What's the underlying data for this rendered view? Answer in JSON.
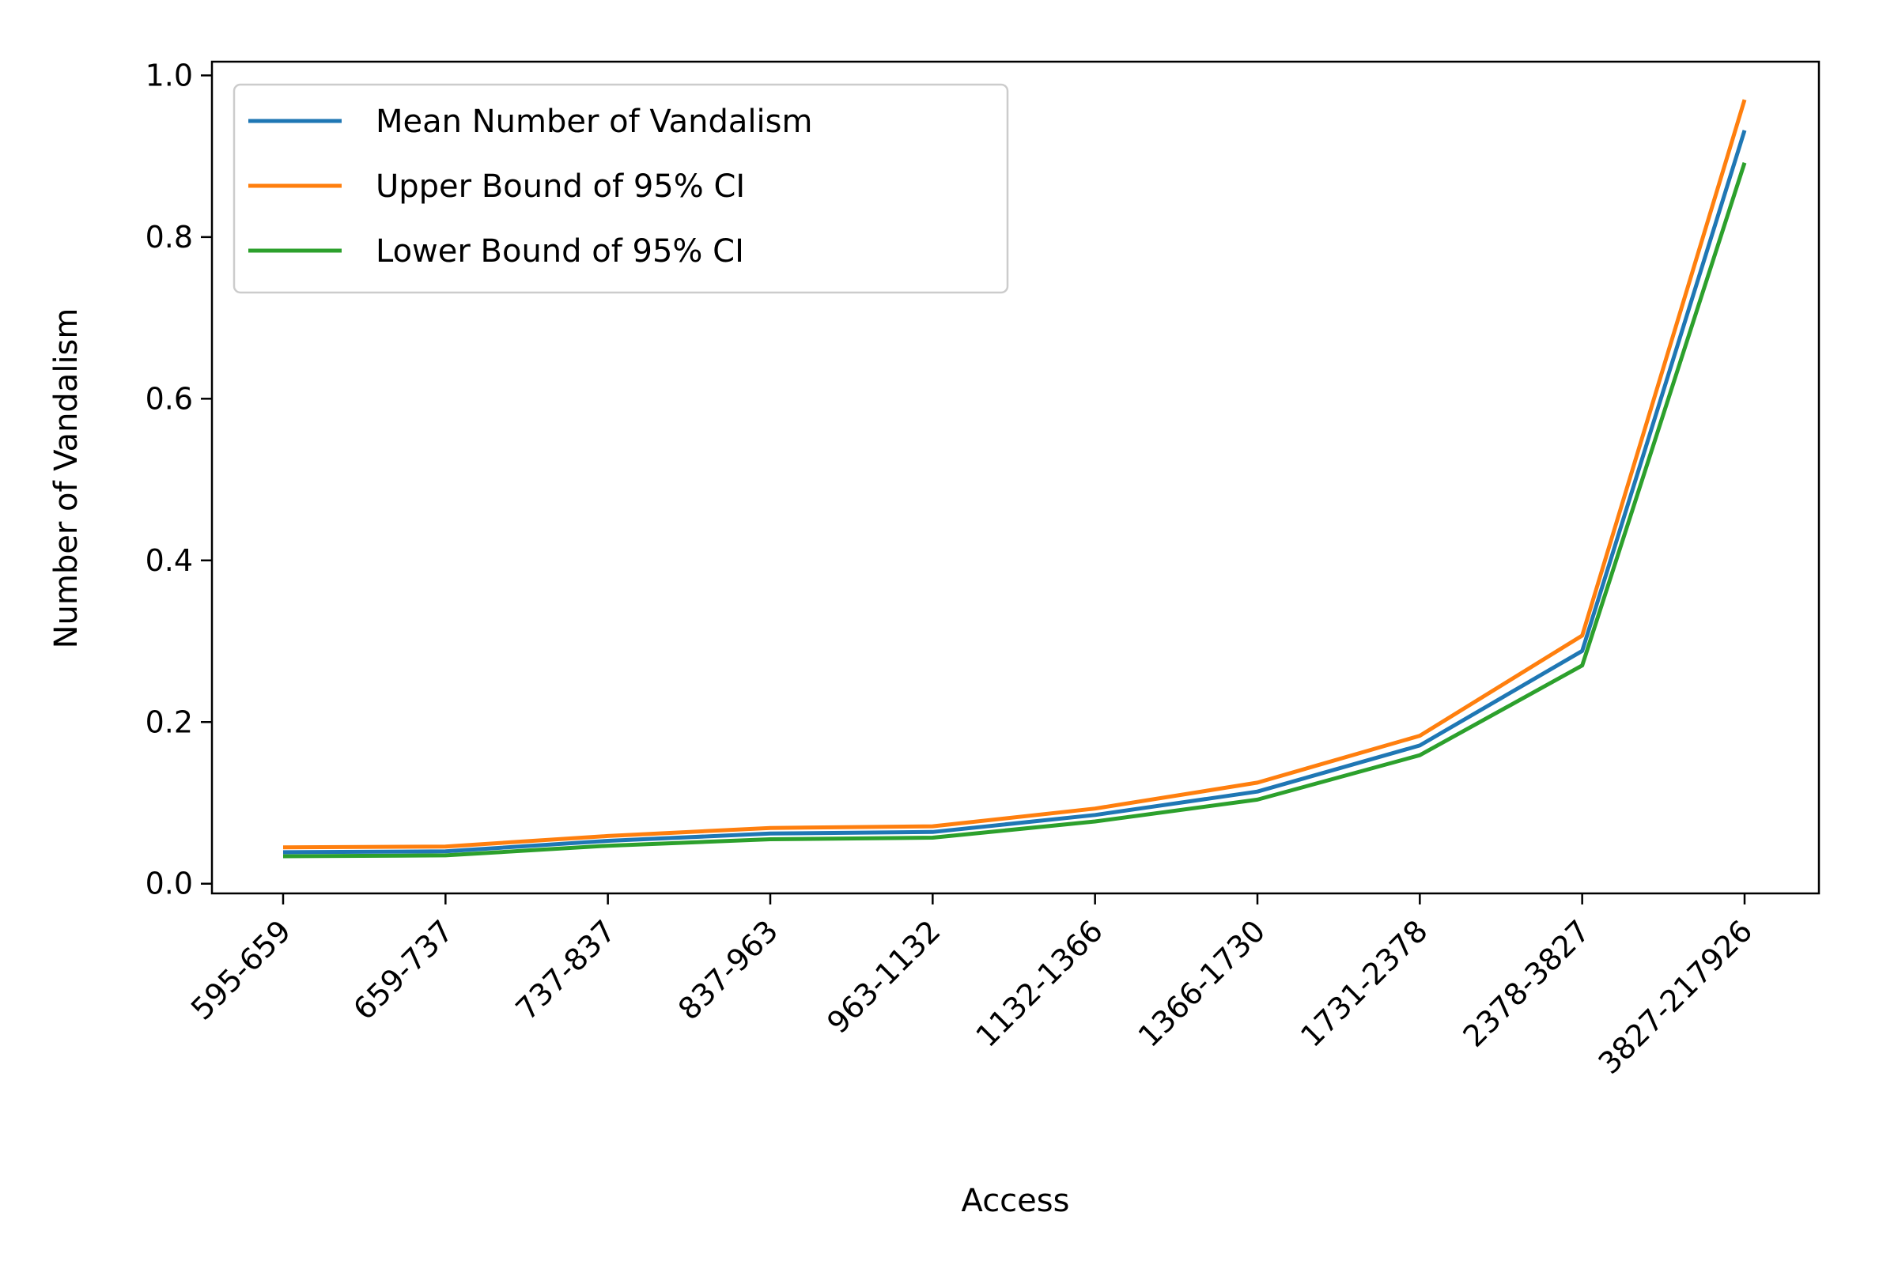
{
  "chart_data": {
    "type": "line",
    "title": "",
    "xlabel": "Access",
    "ylabel": "Number of Vandalism",
    "categories": [
      "595-659",
      "659-737",
      "737-837",
      "837-963",
      "963-1132",
      "1132-1366",
      "1366-1730",
      "1731-2378",
      "2378-3827",
      "3827-217926"
    ],
    "ylim": [
      -0.012,
      1.017
    ],
    "yticks": [
      0.0,
      0.2,
      0.4,
      0.6,
      0.8,
      1.0
    ],
    "ytick_labels": [
      "0.0",
      "0.2",
      "0.4",
      "0.6",
      "0.8",
      "1.0"
    ],
    "grid": false,
    "legend_position": "upper-left",
    "series": [
      {
        "name": "Mean Number of Vandalism",
        "color": "#1f77b4",
        "values": [
          0.039,
          0.04,
          0.053,
          0.062,
          0.064,
          0.085,
          0.114,
          0.171,
          0.288,
          0.932
        ]
      },
      {
        "name": "Upper Bound of 95% CI",
        "color": "#ff7f0e",
        "values": [
          0.045,
          0.046,
          0.059,
          0.069,
          0.071,
          0.093,
          0.125,
          0.183,
          0.307,
          0.97
        ]
      },
      {
        "name": "Lower Bound of 95% CI",
        "color": "#2ca02c",
        "values": [
          0.034,
          0.035,
          0.047,
          0.055,
          0.057,
          0.077,
          0.104,
          0.159,
          0.27,
          0.892
        ]
      }
    ]
  }
}
